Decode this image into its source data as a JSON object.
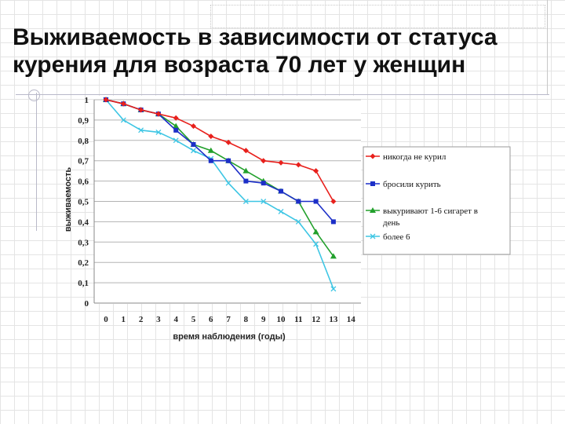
{
  "slide": {
    "title": "Выживаемость в зависимости от статуса курения для возраста 70 лет у женщин"
  },
  "chart_data": {
    "type": "line",
    "xlabel": "время наблюдения (годы)",
    "ylabel": "выживаемость",
    "xlim": [
      0,
      14
    ],
    "ylim": [
      0,
      1
    ],
    "x_ticks": [
      "0",
      "1",
      "2",
      "3",
      "4",
      "5",
      "6",
      "7",
      "8",
      "9",
      "10",
      "11",
      "12",
      "13",
      "14"
    ],
    "y_ticks": [
      "0",
      "0,1",
      "0,2",
      "0,3",
      "0,4",
      "0,5",
      "0,6",
      "0,7",
      "0,8",
      "0,9",
      "1"
    ],
    "grid": "horizontal",
    "legend_position": "right",
    "series": [
      {
        "name": "никогда не курил",
        "color": "#e8201c",
        "marker": "diamond",
        "x": [
          0,
          1,
          2,
          3,
          4,
          5,
          6,
          7,
          8,
          9,
          10,
          11,
          12,
          13
        ],
        "y": [
          1.0,
          0.98,
          0.95,
          0.93,
          0.91,
          0.87,
          0.82,
          0.79,
          0.75,
          0.7,
          0.69,
          0.68,
          0.65,
          0.5
        ]
      },
      {
        "name": "бросили курить",
        "color": "#1c2fc8",
        "marker": "square",
        "x": [
          0,
          1,
          2,
          3,
          4,
          5,
          6,
          7,
          8,
          9,
          10,
          11,
          12,
          13
        ],
        "y": [
          1.0,
          0.98,
          0.95,
          0.93,
          0.85,
          0.78,
          0.7,
          0.7,
          0.6,
          0.59,
          0.55,
          0.5,
          0.5,
          0.4
        ]
      },
      {
        "name": "выкуривают 1-6 сигарет в день",
        "color": "#22a02c",
        "marker": "triangle",
        "x": [
          0,
          1,
          2,
          3,
          4,
          5,
          6,
          7,
          8,
          9,
          10,
          11,
          12,
          13
        ],
        "y": [
          1.0,
          0.98,
          0.95,
          0.93,
          0.87,
          0.78,
          0.75,
          0.7,
          0.65,
          0.6,
          0.55,
          0.5,
          0.35,
          0.23
        ]
      },
      {
        "name": "более 6",
        "color": "#3ec6e4",
        "marker": "x",
        "x": [
          0,
          1,
          2,
          3,
          4,
          5,
          6,
          7,
          8,
          9,
          10,
          11,
          12,
          13
        ],
        "y": [
          1.0,
          0.9,
          0.85,
          0.84,
          0.8,
          0.75,
          0.71,
          0.59,
          0.5,
          0.5,
          0.45,
          0.4,
          0.29,
          0.07
        ]
      }
    ]
  }
}
